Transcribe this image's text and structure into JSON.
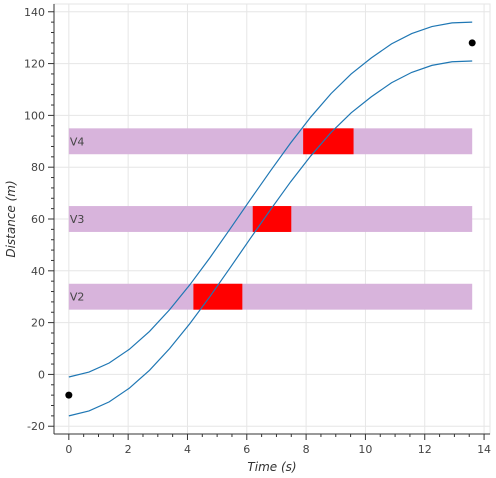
{
  "chart_data": {
    "type": "line",
    "xlabel": "Time (s)",
    "ylabel": "Distance (m)",
    "xlim": [
      -0.5,
      14.2
    ],
    "ylim": [
      -23,
      143
    ],
    "grid": true,
    "x_ticks": [
      0,
      2,
      4,
      6,
      8,
      10,
      12,
      14
    ],
    "y_ticks": [
      -20,
      0,
      20,
      40,
      60,
      80,
      100,
      120,
      140
    ],
    "series": [
      {
        "color": "#1f77b4",
        "x": [
          0,
          0.68,
          1.36,
          2.04,
          2.72,
          3.4,
          4.08,
          4.76,
          5.44,
          6.12,
          6.8,
          7.48,
          8.16,
          8.84,
          9.52,
          10.2,
          10.88,
          11.56,
          12.24,
          12.92,
          13.6
        ],
        "y": [
          -1,
          0.9,
          4.4,
          9.7,
          16.6,
          25.0,
          34.6,
          45.1,
          56.2,
          67.5,
          78.6,
          89.4,
          99.4,
          108.4,
          116.0,
          122.2,
          127.6,
          131.6,
          134.3,
          135.7,
          136.0
        ]
      },
      {
        "color": "#1f77b4",
        "x": [
          0,
          0.68,
          1.36,
          2.04,
          2.72,
          3.4,
          4.08,
          4.76,
          5.44,
          6.12,
          6.8,
          7.48,
          8.16,
          8.84,
          9.52,
          10.2,
          10.88,
          11.56,
          12.24,
          12.92,
          13.6
        ],
        "y": [
          -16,
          -14.1,
          -10.6,
          -5.3,
          1.6,
          10.0,
          19.6,
          30.1,
          41.2,
          52.5,
          63.6,
          74.4,
          84.4,
          93.4,
          101.0,
          107.2,
          112.6,
          116.6,
          119.3,
          120.7,
          121.0
        ]
      }
    ],
    "points": [
      {
        "x": 0,
        "y": -8
      },
      {
        "x": 13.6,
        "y": 128
      }
    ],
    "bands": [
      {
        "label": "V2",
        "y": 30,
        "height": 10,
        "x0": 0,
        "x1": 13.6,
        "color": "#d8b4dc"
      },
      {
        "label": "V3",
        "y": 60,
        "height": 10,
        "x0": 0,
        "x1": 13.6,
        "color": "#d8b4dc"
      },
      {
        "label": "V4",
        "y": 90,
        "height": 10,
        "x0": 0,
        "x1": 13.6,
        "color": "#d8b4dc"
      }
    ],
    "blocks": [
      {
        "x0": 4.2,
        "x1": 5.85,
        "y": 30,
        "height": 10,
        "color": "#ff0000"
      },
      {
        "x0": 6.2,
        "x1": 7.5,
        "y": 60,
        "height": 10,
        "color": "#ff0000"
      },
      {
        "x0": 7.9,
        "x1": 9.6,
        "y": 90,
        "height": 10,
        "color": "#ff0000"
      }
    ]
  }
}
